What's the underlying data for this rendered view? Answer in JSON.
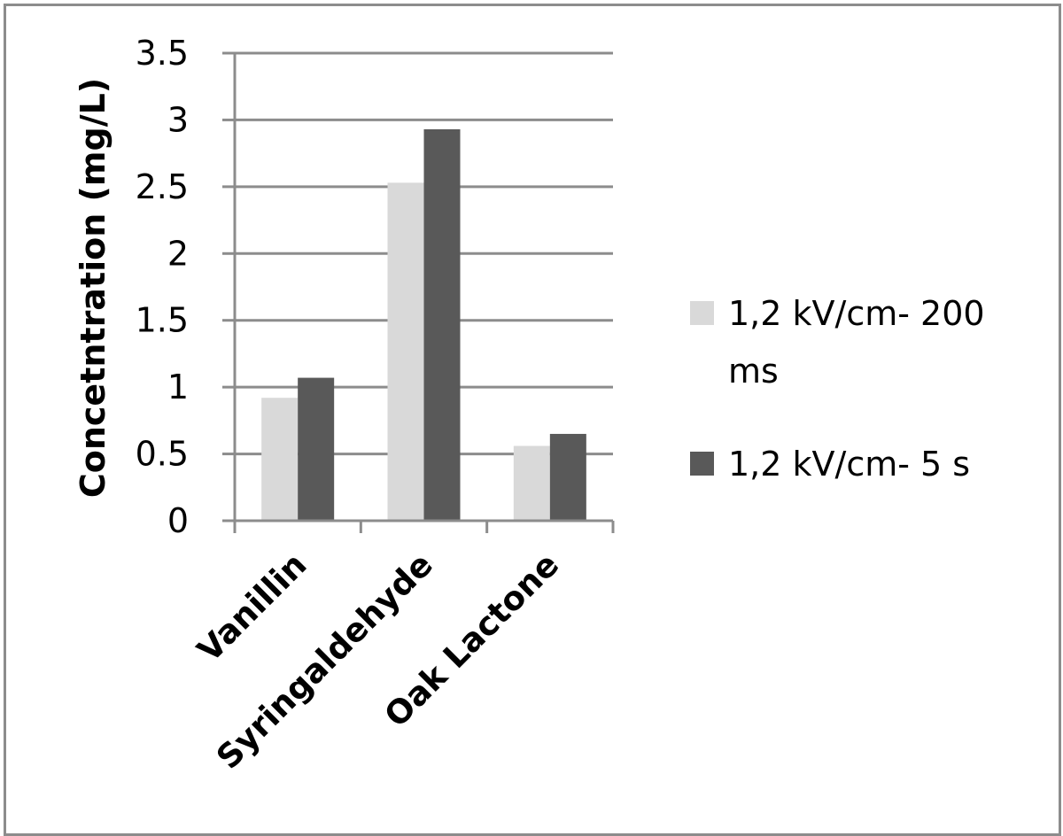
{
  "chart_data": {
    "type": "bar",
    "title": "",
    "xlabel": "",
    "ylabel": "Concetntration (mg/L)",
    "categories": [
      "Vanillin",
      "Syringaldehyde",
      "Oak Lactone"
    ],
    "series": [
      {
        "name": "1,2 kV/cm- 200 ms",
        "legend_lines": [
          "1,2 kV/cm- 200",
          "ms"
        ],
        "color": "#d9d9d9",
        "values": [
          0.92,
          2.53,
          0.56
        ]
      },
      {
        "name": "1,2 kV/cm- 5 s",
        "legend_lines": [
          "1,2 kV/cm- 5 s"
        ],
        "color": "#595959",
        "values": [
          1.07,
          2.93,
          0.65
        ]
      }
    ],
    "ylim": [
      0,
      3.5
    ],
    "yticks": [
      "0",
      "0.5",
      "1",
      "1.5",
      "2",
      "2.5",
      "3",
      "3.5"
    ],
    "grid": true,
    "legend_position": "right"
  }
}
